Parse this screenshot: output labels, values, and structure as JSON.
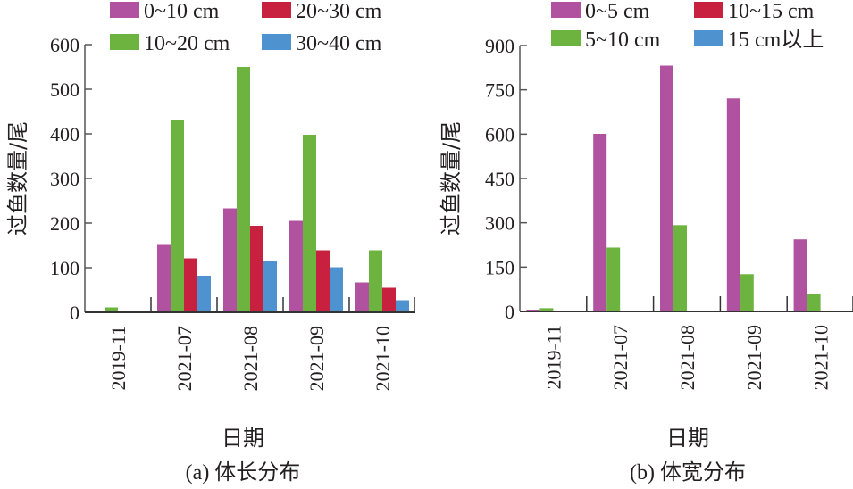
{
  "chart_data": [
    {
      "type": "bar",
      "panel": "a",
      "caption": "(a) 体长分布",
      "xlabel": "日期",
      "ylabel": "过鱼数量/尾",
      "ylim": [
        0,
        600
      ],
      "yticks": [
        0,
        100,
        200,
        300,
        400,
        500,
        600
      ],
      "categories": [
        "2019-11",
        "2021-07",
        "2021-08",
        "2021-09",
        "2021-10"
      ],
      "legend_position": "top",
      "series": [
        {
          "name": "0~10 cm",
          "color": "#b0529f",
          "values": [
            0,
            153,
            233,
            205,
            67
          ]
        },
        {
          "name": "10~20 cm",
          "color": "#6db33f",
          "values": [
            11,
            432,
            550,
            398,
            139
          ]
        },
        {
          "name": "20~30 cm",
          "color": "#c8203f",
          "values": [
            4,
            121,
            194,
            139,
            55
          ]
        },
        {
          "name": "30~40 cm",
          "color": "#4e93cf",
          "values": [
            0,
            82,
            116,
            101,
            27
          ]
        }
      ]
    },
    {
      "type": "bar",
      "panel": "b",
      "caption": "(b) 体宽分布",
      "xlabel": "日期",
      "ylabel": "过鱼数量/尾",
      "ylim": [
        0,
        900
      ],
      "yticks": [
        0,
        150,
        300,
        450,
        600,
        750,
        900
      ],
      "categories": [
        "2019-11",
        "2021-07",
        "2021-08",
        "2021-09",
        "2021-10"
      ],
      "legend_position": "top",
      "series": [
        {
          "name": "0~5 cm",
          "color": "#b0529f",
          "values": [
            6,
            601,
            832,
            721,
            244
          ]
        },
        {
          "name": "5~10 cm",
          "color": "#6db33f",
          "values": [
            11,
            216,
            292,
            126,
            59
          ]
        },
        {
          "name": "10~15 cm",
          "color": "#c8203f",
          "values": [
            0,
            0,
            0,
            0,
            0
          ]
        },
        {
          "name": "15 cm以上",
          "color": "#4e93cf",
          "values": [
            0,
            0,
            0,
            0,
            0
          ]
        }
      ]
    }
  ]
}
